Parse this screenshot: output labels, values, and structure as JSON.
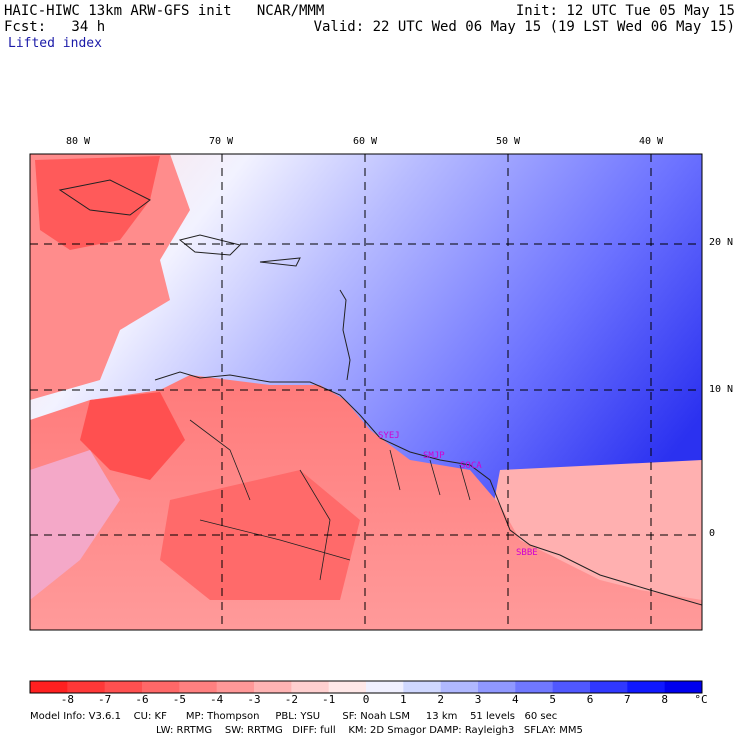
{
  "header": {
    "title": "HAIC-HIWC 13km ARW-GFS init   NCAR/MMM",
    "init": "Init: 12 UTC Tue 05 May 15",
    "fcst": "Fcst:   34 h",
    "valid": "Valid: 22 UTC Wed 06 May 15 (19 LST Wed 06 May 15)",
    "field": "Lifted index"
  },
  "map": {
    "lon_labels": [
      "80 W",
      "70 W",
      "60 W",
      "50 W",
      "40 W"
    ],
    "lat_labels": [
      "20 N",
      "10 N",
      "0"
    ],
    "stations": [
      "SYEJ",
      "SMJP",
      "SOCA",
      "SBBE"
    ]
  },
  "colorbar": {
    "labels": [
      "-8",
      "-7",
      "-6",
      "-5",
      "-4",
      "-3",
      "-2",
      "-1",
      "0",
      "1",
      "2",
      "3",
      "4",
      "5",
      "6",
      "7",
      "8"
    ],
    "unit": "°C",
    "colors": [
      "#ff2020",
      "#ff3838",
      "#ff5050",
      "#ff6868",
      "#ff8080",
      "#ff9898",
      "#ffb4b4",
      "#ffd0d0",
      "#ffe8e8",
      "#f0f0ff",
      "#d0d8ff",
      "#b0b8ff",
      "#9098ff",
      "#7078ff",
      "#5058ff",
      "#3038ff",
      "#1018ff",
      "#0000ee"
    ]
  },
  "model_info": {
    "line1": "Model Info: V3.6.1    CU: KF      MP: Thompson     PBL: YSU       SF: Noah LSM     13 km    51 levels   60 sec",
    "line2": "LW: RRTMG    SW: RRTMG   DIFF: full    KM: 2D Smagor DAMP: Rayleigh3   SFLAY: MM5"
  }
}
